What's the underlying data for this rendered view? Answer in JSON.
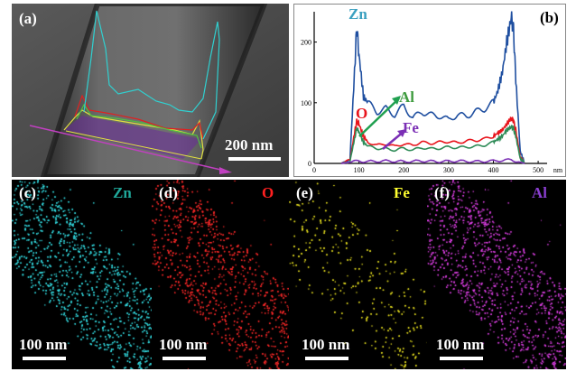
{
  "panel_a": {
    "label": "(a)",
    "scale": "200 nm"
  },
  "panel_b": {
    "label": "(b)",
    "annotations": {
      "zn": "Zn",
      "al": "Al",
      "o": "O",
      "fe": "Fe"
    },
    "colors": {
      "zn": "#1f4fa0",
      "o": "#e8141c",
      "al": "#2e8b57",
      "fe": "#7b2fb5",
      "zn_label": "#3aa0c0",
      "al_label": "#3e9b3e"
    }
  },
  "chart_data": {
    "type": "line",
    "x_ticks": [
      "0",
      "100",
      "200",
      "300",
      "400",
      "500"
    ],
    "x_unit": "nm",
    "y_ticks": [
      "0",
      "100",
      "200"
    ],
    "xlim": [
      0,
      520
    ],
    "ylim": [
      0,
      250
    ],
    "series": [
      {
        "name": "Zn",
        "color": "#1f4fa0",
        "x": [
          60,
          80,
          90,
          95,
          100,
          110,
          120,
          140,
          160,
          180,
          200,
          220,
          240,
          260,
          280,
          300,
          320,
          340,
          360,
          380,
          400,
          410,
          420,
          430,
          440,
          445,
          450,
          460,
          470
        ],
        "y": [
          0,
          8,
          150,
          225,
          180,
          110,
          100,
          85,
          90,
          80,
          95,
          75,
          85,
          80,
          78,
          72,
          80,
          78,
          85,
          90,
          100,
          120,
          150,
          200,
          240,
          220,
          140,
          20,
          0
        ]
      },
      {
        "name": "O",
        "color": "#e8141c",
        "x": [
          60,
          80,
          90,
          95,
          100,
          110,
          120,
          140,
          160,
          180,
          200,
          220,
          240,
          260,
          280,
          300,
          320,
          340,
          360,
          380,
          400,
          410,
          420,
          430,
          440,
          445,
          450,
          460,
          470
        ],
        "y": [
          0,
          5,
          50,
          70,
          65,
          45,
          35,
          30,
          32,
          28,
          32,
          30,
          35,
          33,
          35,
          36,
          34,
          37,
          38,
          40,
          45,
          50,
          55,
          65,
          75,
          70,
          55,
          10,
          0
        ]
      },
      {
        "name": "Al",
        "color": "#2e8b57",
        "x": [
          60,
          80,
          90,
          95,
          100,
          110,
          120,
          140,
          160,
          180,
          200,
          220,
          240,
          260,
          280,
          300,
          320,
          340,
          360,
          380,
          400,
          410,
          420,
          430,
          440,
          445,
          450,
          460,
          470
        ],
        "y": [
          0,
          4,
          40,
          58,
          52,
          35,
          28,
          25,
          24,
          22,
          25,
          22,
          26,
          24,
          25,
          27,
          26,
          27,
          28,
          30,
          35,
          40,
          45,
          55,
          60,
          58,
          45,
          8,
          0
        ]
      },
      {
        "name": "Fe",
        "color": "#7b2fb5",
        "x": [
          60,
          80,
          100,
          120,
          160,
          200,
          240,
          280,
          320,
          360,
          400,
          440,
          460,
          470
        ],
        "y": [
          0,
          2,
          4,
          3,
          4,
          3,
          4,
          3,
          4,
          3,
          4,
          6,
          2,
          0
        ]
      }
    ]
  },
  "maps": [
    {
      "label": "(c)",
      "element": "Zn",
      "element_color": "#20a89a",
      "dot_color": "#35e0e6",
      "scale": "100 nm"
    },
    {
      "label": "(d)",
      "element": "O",
      "element_color": "#ff2020",
      "dot_color": "#ff2a2a",
      "scale": "100 nm"
    },
    {
      "label": "(e)",
      "element": "Fe",
      "element_color": "#ffff30",
      "dot_color": "#e8e020",
      "scale": "100 nm"
    },
    {
      "label": "(f)",
      "element": "Al",
      "element_color": "#8a3fd0",
      "dot_color": "#e040e8",
      "scale": "100 nm"
    }
  ]
}
